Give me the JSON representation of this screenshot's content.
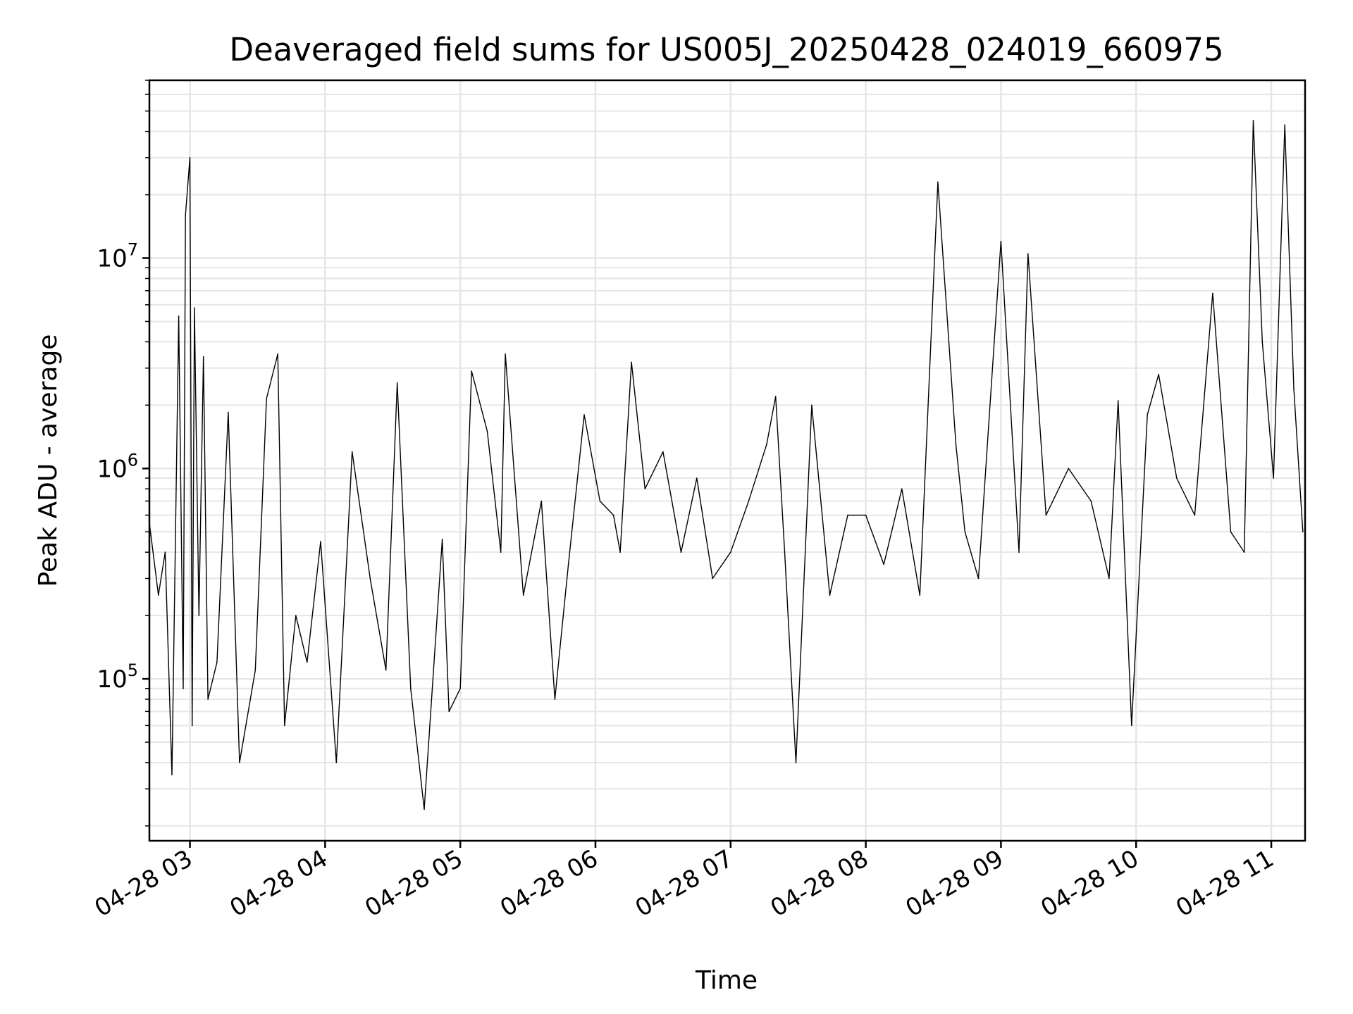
{
  "chart_data": {
    "type": "line",
    "title": "Deaveraged field sums for US005J_20250428_024019_660975",
    "xlabel": "Time",
    "ylabel": "Peak ADU - average",
    "y_scale": "log",
    "ylim": [
      17000,
      70000000
    ],
    "xlim": [
      "2025-04-28 02:42",
      "2025-04-28 11:15"
    ],
    "grid": true,
    "line_color": "#000000",
    "grid_color": "#e6e6e6",
    "x_ticks": [
      {
        "value": "2025-04-28 03:00",
        "label": "04-28 03"
      },
      {
        "value": "2025-04-28 04:00",
        "label": "04-28 04"
      },
      {
        "value": "2025-04-28 05:00",
        "label": "04-28 05"
      },
      {
        "value": "2025-04-28 06:00",
        "label": "04-28 06"
      },
      {
        "value": "2025-04-28 07:00",
        "label": "04-28 07"
      },
      {
        "value": "2025-04-28 08:00",
        "label": "04-28 08"
      },
      {
        "value": "2025-04-28 09:00",
        "label": "04-28 09"
      },
      {
        "value": "2025-04-28 10:00",
        "label": "04-28 10"
      },
      {
        "value": "2025-04-28 11:00",
        "label": "04-28 11"
      }
    ],
    "y_ticks": [
      {
        "value": 100000,
        "base": "10",
        "exp": "5"
      },
      {
        "value": 1000000,
        "base": "10",
        "exp": "6"
      },
      {
        "value": 10000000,
        "base": "10",
        "exp": "7"
      }
    ],
    "series": [
      {
        "x": [
          "2025-04-28 02:42",
          "2025-04-28 02:46",
          "2025-04-28 02:49",
          "2025-04-28 02:52",
          "2025-04-28 02:55",
          "2025-04-28 02:57",
          "2025-04-28 02:58",
          "2025-04-28 03:00",
          "2025-04-28 03:01",
          "2025-04-28 03:02",
          "2025-04-28 03:04",
          "2025-04-28 03:06",
          "2025-04-28 03:08",
          "2025-04-28 03:12",
          "2025-04-28 03:17",
          "2025-04-28 03:22",
          "2025-04-28 03:29",
          "2025-04-28 03:34",
          "2025-04-28 03:39",
          "2025-04-28 03:42",
          "2025-04-28 03:47",
          "2025-04-28 03:52",
          "2025-04-28 03:58",
          "2025-04-28 04:05",
          "2025-04-28 04:12",
          "2025-04-28 04:20",
          "2025-04-28 04:27",
          "2025-04-28 04:32",
          "2025-04-28 04:38",
          "2025-04-28 04:44",
          "2025-04-28 04:52",
          "2025-04-28 04:55",
          "2025-04-28 05:00",
          "2025-04-28 05:05",
          "2025-04-28 05:12",
          "2025-04-28 05:18",
          "2025-04-28 05:20",
          "2025-04-28 05:28",
          "2025-04-28 05:36",
          "2025-04-28 05:42",
          "2025-04-28 05:48",
          "2025-04-28 05:55",
          "2025-04-28 06:02",
          "2025-04-28 06:08",
          "2025-04-28 06:11",
          "2025-04-28 06:16",
          "2025-04-28 06:22",
          "2025-04-28 06:30",
          "2025-04-28 06:38",
          "2025-04-28 06:45",
          "2025-04-28 06:52",
          "2025-04-28 07:00",
          "2025-04-28 07:08",
          "2025-04-28 07:16",
          "2025-04-28 07:20",
          "2025-04-28 07:24",
          "2025-04-28 07:29",
          "2025-04-28 07:36",
          "2025-04-28 07:44",
          "2025-04-28 07:52",
          "2025-04-28 08:00",
          "2025-04-28 08:08",
          "2025-04-28 08:16",
          "2025-04-28 08:24",
          "2025-04-28 08:32",
          "2025-04-28 08:40",
          "2025-04-28 08:44",
          "2025-04-28 08:50",
          "2025-04-28 09:00",
          "2025-04-28 09:08",
          "2025-04-28 09:12",
          "2025-04-28 09:20",
          "2025-04-28 09:30",
          "2025-04-28 09:40",
          "2025-04-28 09:48",
          "2025-04-28 09:52",
          "2025-04-28 09:58",
          "2025-04-28 10:05",
          "2025-04-28 10:10",
          "2025-04-28 10:18",
          "2025-04-28 10:26",
          "2025-04-28 10:34",
          "2025-04-28 10:42",
          "2025-04-28 10:48",
          "2025-04-28 10:52",
          "2025-04-28 10:56",
          "2025-04-28 11:01",
          "2025-04-28 11:06",
          "2025-04-28 11:10",
          "2025-04-28 11:14"
        ],
        "y": [
          550000,
          250000,
          400000,
          35000,
          5300000,
          90000,
          16000000,
          30000000,
          60000,
          5800000,
          200000,
          3400000,
          80000,
          120000,
          1850000,
          40000,
          110000,
          2150000,
          3500000,
          60000,
          200000,
          120000,
          450000,
          40000,
          1200000,
          300000,
          110000,
          2550000,
          90000,
          24000,
          460000,
          70000,
          90000,
          2900000,
          1500000,
          400000,
          3500000,
          250000,
          700000,
          80000,
          350000,
          1800000,
          700000,
          600000,
          400000,
          3200000,
          800000,
          1200000,
          400000,
          900000,
          300000,
          400000,
          700000,
          1300000,
          2200000,
          400000,
          40000,
          2000000,
          250000,
          600000,
          600000,
          350000,
          800000,
          250000,
          23000000,
          1300000,
          500000,
          300000,
          12000000,
          400000,
          10500000,
          600000,
          1000000,
          700000,
          300000,
          2100000,
          60000,
          1800000,
          2800000,
          900000,
          600000,
          6800000,
          500000,
          400000,
          45000000,
          4000000,
          900000,
          43000000,
          2400000,
          500000
        ]
      }
    ]
  }
}
